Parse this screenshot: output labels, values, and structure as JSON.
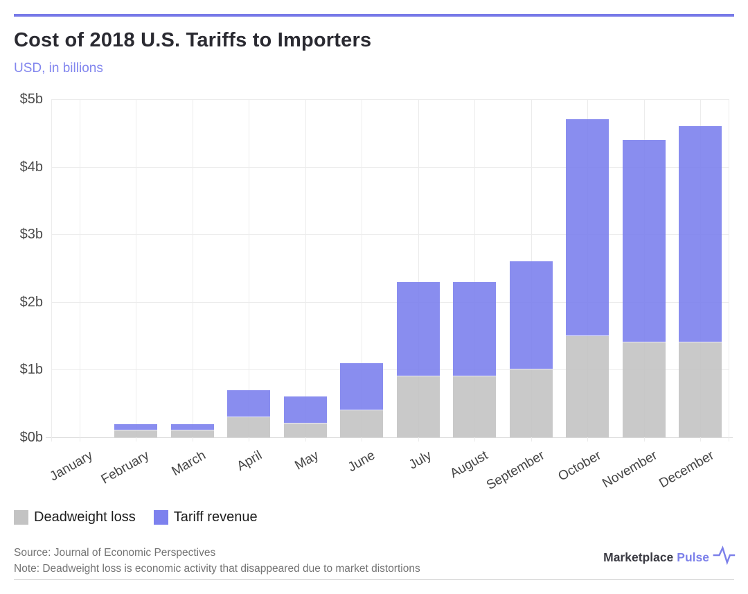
{
  "page": {
    "title": "Cost of 2018 U.S. Tariffs to Importers",
    "subtitle": "USD, in billions",
    "source": "Source: Journal of Economic Perspectives",
    "note": "Note: Deadweight loss is economic activity that disappeared due to market distortions",
    "brand": {
      "name": "Marketplace",
      "accent": "Pulse",
      "icon": "pulse-line-icon"
    }
  },
  "colors": {
    "accent_purple": "#7d81ee",
    "bar_purple_effective": "#8a8ef0",
    "bar_gray": "#c3c3c3",
    "top_rule": "#7779e8",
    "grid": "#ececec",
    "baseline": "#d9d9d9",
    "axis_text": "#4a4a4a",
    "title_text": "#2a2a31",
    "muted_text": "#737373"
  },
  "legend": [
    {
      "label": "Deadweight loss",
      "color": "#c3c3c3"
    },
    {
      "label": "Tariff revenue",
      "color": "#7d81ee"
    }
  ],
  "chart_data": {
    "type": "bar",
    "stacked": true,
    "title": "Cost of 2018 U.S. Tariffs to Importers",
    "subtitle": "USD, in billions",
    "unit": "USD billions",
    "categories": [
      "January",
      "February",
      "March",
      "April",
      "May",
      "June",
      "July",
      "August",
      "September",
      "October",
      "November",
      "December"
    ],
    "series": [
      {
        "name": "Deadweight loss",
        "color": "#c3c3c3",
        "values": [
          0,
          0.1,
          0.1,
          0.3,
          0.2,
          0.4,
          0.9,
          0.9,
          1.0,
          1.5,
          1.4,
          1.4
        ]
      },
      {
        "name": "Tariff revenue",
        "color": "#7d81ee",
        "values": [
          0,
          0.1,
          0.1,
          0.4,
          0.4,
          0.7,
          1.4,
          1.4,
          1.6,
          3.2,
          3.0,
          3.2
        ]
      }
    ],
    "totals": [
      0,
      0.2,
      0.2,
      0.7,
      0.6,
      1.1,
      2.3,
      2.3,
      2.6,
      4.7,
      4.4,
      4.6
    ],
    "y_ticks": [
      "$5b",
      "$4b",
      "$3b",
      "$2b",
      "$1b",
      "$0b"
    ],
    "ylim": [
      0,
      5
    ],
    "grid": true,
    "legend_position": "bottom-left",
    "x_label_rotation": -30
  }
}
